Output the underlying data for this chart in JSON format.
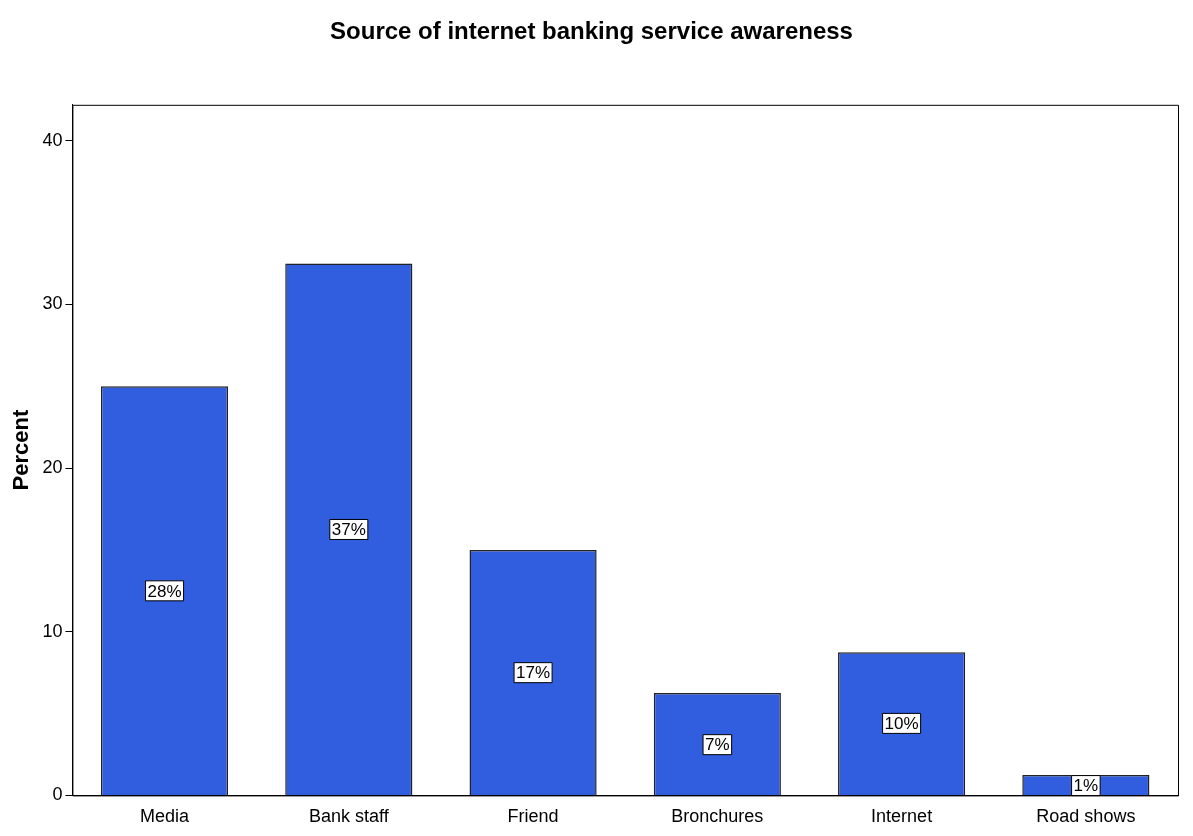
{
  "chart_data": {
    "type": "bar",
    "title": "Source of internet banking service awareness",
    "ylabel": "Percent",
    "categories": [
      "Media",
      "Bank staff",
      "Friend",
      "Bronchures",
      "Internet",
      "Road shows"
    ],
    "values": [
      25,
      32.5,
      15,
      6.25,
      8.75,
      1.25
    ],
    "annotations": [
      {
        "text": "28%",
        "x": "Media",
        "y": 12.5
      },
      {
        "text": "37%",
        "x": "Bank staff",
        "y": 16.25
      },
      {
        "text": "17%",
        "x": "Friend",
        "y": 7.5
      },
      {
        "text": "7%",
        "x": "Bronchures",
        "y": 3.1
      },
      {
        "text": "10%",
        "x": "Internet",
        "y": 4.4
      },
      {
        "text": "1%",
        "x": "Road shows",
        "y": 0.6
      }
    ],
    "color": "#315ddf",
    "ylim": [
      0,
      42.2
    ],
    "yticks": [
      0,
      10,
      20,
      30,
      40
    ],
    "grid": false,
    "legend": false
  }
}
